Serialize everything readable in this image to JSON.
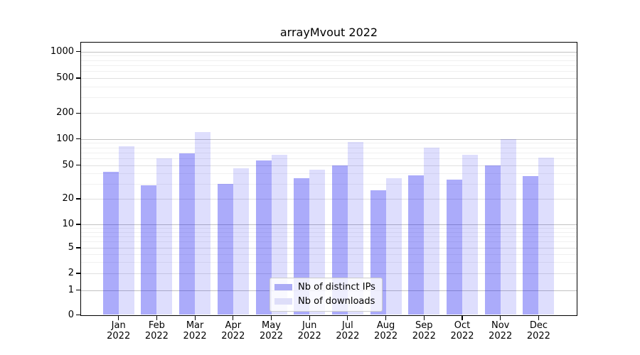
{
  "title": "arrayMvout 2022",
  "chart_data": {
    "type": "bar",
    "title": "arrayMvout 2022",
    "xlabel": "",
    "ylabel": "",
    "yscale": "symlog",
    "ylim": [
      0,
      1270
    ],
    "grid": true,
    "legend_position": "bottom-center",
    "categories": [
      "Jan 2022",
      "Feb 2022",
      "Mar 2022",
      "Apr 2022",
      "May 2022",
      "Jun 2022",
      "Jul 2022",
      "Aug 2022",
      "Sep 2022",
      "Oct 2022",
      "Nov 2022",
      "Dec 2022"
    ],
    "series": [
      {
        "name": "Nb of distinct IPs",
        "color": "rgba(0,0,240,0.33)",
        "values": [
          42,
          29,
          68,
          30,
          57,
          35,
          50,
          25,
          38,
          34,
          50,
          37
        ]
      },
      {
        "name": "Nb of downloads",
        "color": "rgba(0,0,240,0.13)",
        "values": [
          82,
          60,
          120,
          46,
          66,
          44,
          92,
          35,
          80,
          66,
          100,
          61
        ]
      }
    ],
    "yticks": [
      0,
      1,
      2,
      5,
      10,
      20,
      50,
      100,
      200,
      500,
      1000
    ],
    "minor_gridline_multiples": [
      3,
      4,
      6,
      7,
      8,
      9
    ],
    "colors": {
      "bar_dark": "#ababf6",
      "bar_light": "#dedef9",
      "grid_major": "#c2c2c2",
      "grid_labeled": "#e0e0e0",
      "grid_minor": "#f0f0f0",
      "axis": "#000000",
      "legend_border": "#cccccc"
    }
  },
  "legend": {
    "items": [
      {
        "label": "Nb of distinct IPs"
      },
      {
        "label": "Nb of downloads"
      }
    ]
  }
}
